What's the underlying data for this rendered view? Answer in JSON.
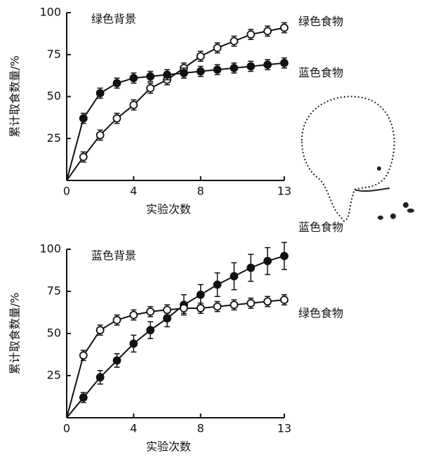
{
  "chart_data": [
    {
      "type": "line",
      "title": "绿色背景",
      "xlabel": "实验次数",
      "ylabel": "累计取食数量/%",
      "x": [
        0,
        1,
        2,
        3,
        4,
        5,
        6,
        7,
        8,
        9,
        10,
        11,
        12,
        13
      ],
      "xlim": [
        0,
        13
      ],
      "ylim": [
        0,
        100
      ],
      "xticks": [
        0,
        4,
        8,
        13
      ],
      "yticks": [
        25,
        50,
        75,
        100
      ],
      "series": [
        {
          "name": "绿色食物",
          "color": "#111111",
          "marker_fill": "#ffffff",
          "values": [
            0,
            14,
            27,
            37,
            45,
            55,
            60,
            67,
            74,
            79,
            83,
            87,
            89,
            91
          ],
          "errors": [
            null,
            3,
            3,
            3,
            3,
            3,
            3,
            3,
            3,
            3,
            3,
            3,
            3,
            3
          ]
        },
        {
          "name": "蓝色食物",
          "color": "#111111",
          "marker_fill": "#111111",
          "values": [
            0,
            37,
            52,
            58,
            61,
            62,
            63,
            64,
            65,
            66,
            67,
            68,
            69,
            70
          ],
          "errors": [
            null,
            3,
            3,
            3,
            3,
            3,
            3,
            3,
            3,
            3,
            3,
            3,
            3,
            3
          ]
        }
      ]
    },
    {
      "type": "line",
      "title": "蓝色背景",
      "xlabel": "实验次数",
      "ylabel": "累计取食数量/%",
      "x": [
        0,
        1,
        2,
        3,
        4,
        5,
        6,
        7,
        8,
        9,
        10,
        11,
        12,
        13
      ],
      "xlim": [
        0,
        13
      ],
      "ylim": [
        0,
        100
      ],
      "xticks": [
        0,
        4,
        8,
        13
      ],
      "yticks": [
        25,
        50,
        75,
        100
      ],
      "series": [
        {
          "name": "蓝色食物",
          "color": "#111111",
          "marker_fill": "#111111",
          "values": [
            0,
            12,
            24,
            34,
            44,
            52,
            59,
            67,
            73,
            79,
            84,
            89,
            93,
            96
          ],
          "errors": [
            null,
            3,
            4,
            4,
            5,
            5,
            5,
            6,
            6,
            7,
            8,
            8,
            8,
            8
          ]
        },
        {
          "name": "绿色食物",
          "color": "#111111",
          "marker_fill": "#ffffff",
          "values": [
            0,
            37,
            52,
            58,
            61,
            63,
            64,
            65,
            65,
            66,
            67,
            68,
            69,
            70
          ],
          "errors": [
            null,
            3,
            3,
            3,
            3,
            3,
            3,
            3,
            3,
            3,
            3,
            3,
            3,
            3
          ]
        }
      ]
    }
  ]
}
